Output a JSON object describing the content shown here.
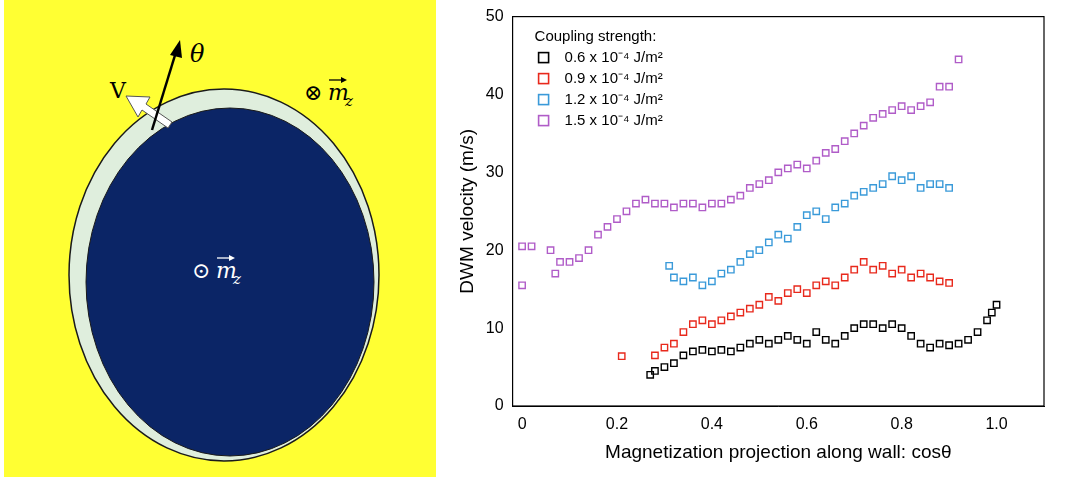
{
  "diagram": {
    "velocity_label": "V",
    "angle_label": "θ",
    "outer_magnetization": {
      "symbol": "⊗",
      "vector": "m",
      "subscript": "z"
    },
    "inner_magnetization": {
      "symbol": "⊙",
      "vector": "m",
      "subscript": "z"
    }
  },
  "chart_data": {
    "type": "scatter",
    "x_label": "Magnetization projection along wall: cosθ",
    "y_label": "DWM velocity (m/s)",
    "xlim": [
      -0.02,
      1.1
    ],
    "xticks": [
      0,
      0.2,
      0.4,
      0.6,
      0.8,
      {
        "value": 1,
        "label": "1.0"
      }
    ],
    "ylim": [
      0,
      50
    ],
    "yticks": [
      0,
      10,
      20,
      30,
      40,
      50
    ],
    "grid": false,
    "legend": "upper left",
    "legend_title": "Coupling strength:",
    "series": [
      {
        "name": "0.6 x 10⁻⁴ J/m²",
        "color": "#000000",
        "marker": "square",
        "x": [
          0.27,
          0.28,
          0.3,
          0.32,
          0.34,
          0.36,
          0.38,
          0.4,
          0.42,
          0.44,
          0.46,
          0.48,
          0.5,
          0.52,
          0.54,
          0.56,
          0.58,
          0.6,
          0.62,
          0.64,
          0.66,
          0.68,
          0.7,
          0.72,
          0.74,
          0.76,
          0.78,
          0.8,
          0.82,
          0.84,
          0.86,
          0.88,
          0.9,
          0.92,
          0.94,
          0.96,
          0.98,
          0.99,
          1.0
        ],
        "values": [
          4,
          4.5,
          5,
          5.5,
          6.5,
          7,
          7.2,
          7,
          7.2,
          7,
          7.5,
          8,
          8.5,
          8,
          8.5,
          9,
          8.5,
          8,
          9.5,
          8.5,
          8,
          9,
          10,
          10.5,
          10.5,
          10,
          10.5,
          10,
          9,
          8,
          7.5,
          8,
          7.8,
          8,
          8.5,
          9.5,
          11,
          12,
          13
        ]
      },
      {
        "name": "0.9 x 10⁻⁴ J/m²",
        "color": "#e8291c",
        "marker": "square",
        "x": [
          0.21,
          0.28,
          0.3,
          0.32,
          0.34,
          0.36,
          0.38,
          0.4,
          0.42,
          0.44,
          0.46,
          0.48,
          0.5,
          0.52,
          0.54,
          0.56,
          0.58,
          0.6,
          0.62,
          0.64,
          0.66,
          0.68,
          0.7,
          0.72,
          0.74,
          0.76,
          0.78,
          0.8,
          0.82,
          0.84,
          0.86,
          0.88,
          0.9
        ],
        "values": [
          6.4,
          6.5,
          7.5,
          8,
          9.5,
          10.5,
          11,
          10.5,
          11,
          11.5,
          12,
          12.5,
          13,
          14,
          13.5,
          14.5,
          15,
          14.5,
          15.5,
          16,
          15.5,
          16.5,
          17.5,
          18.5,
          17.5,
          18,
          17,
          17.5,
          16.5,
          17,
          16.5,
          16,
          15.8
        ]
      },
      {
        "name": "1.2 x 10⁻⁴ J/m²",
        "color": "#3a9ad9",
        "marker": "square",
        "x": [
          0.31,
          0.32,
          0.34,
          0.36,
          0.38,
          0.4,
          0.42,
          0.44,
          0.46,
          0.48,
          0.5,
          0.52,
          0.54,
          0.56,
          0.58,
          0.6,
          0.62,
          0.64,
          0.66,
          0.68,
          0.7,
          0.72,
          0.74,
          0.76,
          0.78,
          0.8,
          0.82,
          0.84,
          0.86,
          0.88,
          0.9
        ],
        "values": [
          18,
          16.5,
          16,
          16.5,
          15.5,
          16,
          17,
          17.5,
          18.5,
          19.5,
          20,
          21,
          22,
          21.5,
          23,
          24.5,
          25,
          24,
          25.5,
          26,
          27,
          27.5,
          28,
          28.5,
          29.5,
          29,
          29.5,
          28,
          28.5,
          28.5,
          28
        ]
      },
      {
        "name": "1.5 x 10⁻⁴ J/m²",
        "color": "#b05cc8",
        "marker": "square",
        "x": [
          0.0,
          0.0,
          0.02,
          0.06,
          0.07,
          0.08,
          0.1,
          0.12,
          0.14,
          0.16,
          0.18,
          0.2,
          0.22,
          0.24,
          0.26,
          0.28,
          0.3,
          0.32,
          0.34,
          0.36,
          0.38,
          0.4,
          0.42,
          0.44,
          0.46,
          0.48,
          0.5,
          0.52,
          0.54,
          0.56,
          0.58,
          0.6,
          0.62,
          0.64,
          0.66,
          0.68,
          0.7,
          0.72,
          0.74,
          0.76,
          0.78,
          0.8,
          0.82,
          0.84,
          0.86,
          0.88,
          0.9,
          0.92
        ],
        "values": [
          15.5,
          20.5,
          20.5,
          20,
          17,
          18.5,
          18.5,
          19,
          20,
          22,
          23,
          24,
          25,
          26,
          26.5,
          26,
          26,
          25.5,
          26,
          26,
          25.5,
          26,
          26,
          26.5,
          27,
          28,
          28.5,
          29,
          30,
          30.5,
          31,
          30.5,
          31.5,
          32.5,
          33,
          34,
          35,
          36,
          37,
          37.5,
          38,
          38.5,
          38,
          38.5,
          39,
          41,
          41,
          44.5
        ]
      }
    ]
  }
}
